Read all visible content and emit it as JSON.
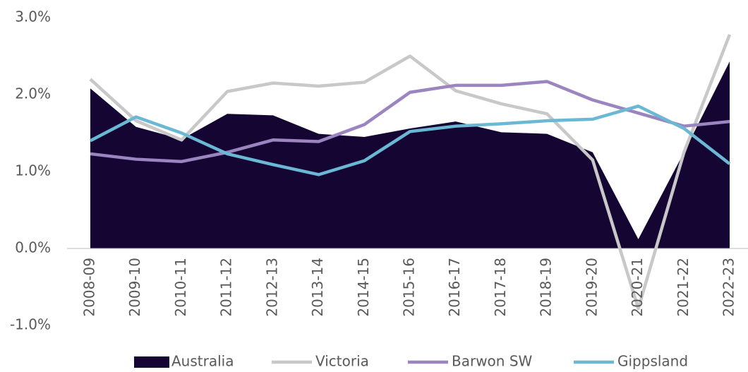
{
  "chart_data": {
    "type": "line",
    "categories": [
      "2008-09",
      "2009-10",
      "2010-11",
      "2011-12",
      "2012-13",
      "2013-14",
      "2014-15",
      "2015-16",
      "2016-17",
      "2017-18",
      "2018-19",
      "2019-20",
      "2020-21",
      "2021-22",
      "2022-23"
    ],
    "series": [
      {
        "name": "Australia",
        "kind": "area",
        "color": "#140532",
        "values": [
          2.08,
          1.58,
          1.42,
          1.75,
          1.73,
          1.49,
          1.45,
          1.56,
          1.65,
          1.51,
          1.49,
          1.25,
          0.12,
          1.25,
          2.43
        ]
      },
      {
        "name": "Victoria",
        "kind": "line",
        "color": "#c8c8c8",
        "values": [
          2.2,
          1.66,
          1.41,
          2.04,
          2.15,
          2.11,
          2.16,
          2.5,
          2.05,
          1.88,
          1.75,
          1.15,
          -0.78,
          1.25,
          2.78
        ]
      },
      {
        "name": "Barwon SW",
        "kind": "line",
        "color": "#9b85c0",
        "values": [
          1.23,
          1.16,
          1.13,
          1.25,
          1.41,
          1.39,
          1.61,
          2.03,
          2.12,
          2.12,
          2.17,
          1.93,
          1.76,
          1.59,
          1.65
        ]
      },
      {
        "name": "Gippsland",
        "kind": "line",
        "color": "#6ab8d4",
        "values": [
          1.4,
          1.71,
          1.5,
          1.23,
          1.09,
          0.96,
          1.14,
          1.52,
          1.59,
          1.62,
          1.66,
          1.68,
          1.85,
          1.56,
          1.1
        ]
      }
    ],
    "ylim": [
      -1,
      3
    ],
    "yticks": [
      {
        "value": -1,
        "label": "-1.0%"
      },
      {
        "value": 0,
        "label": "0.0%"
      },
      {
        "value": 1,
        "label": "1.0%"
      },
      {
        "value": 2,
        "label": "2.0%"
      },
      {
        "value": 3,
        "label": "3.0%"
      }
    ],
    "grid": false,
    "legend": "bottom"
  }
}
